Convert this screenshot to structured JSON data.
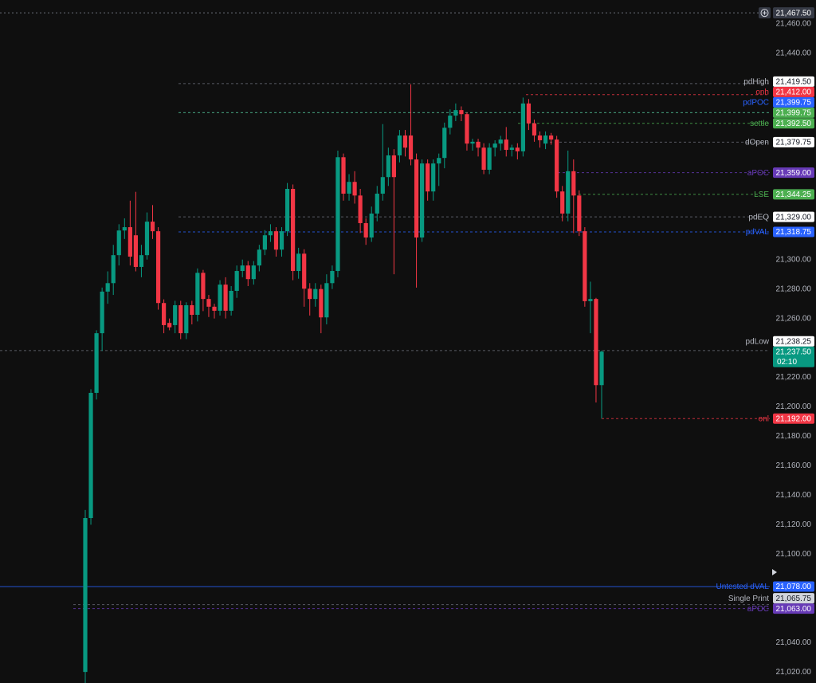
{
  "chart_data": {
    "type": "candlestick",
    "ylim": [
      21012.5,
      21476.25
    ],
    "yticks": [
      {
        "value": 21460,
        "label": "21,460.00"
      },
      {
        "value": 21440,
        "label": "21,440.00"
      },
      {
        "value": 21300,
        "label": "21,300.00"
      },
      {
        "value": 21280,
        "label": "21,280.00"
      },
      {
        "value": 21260,
        "label": "21,260.00"
      },
      {
        "value": 21220,
        "label": "21,220.00"
      },
      {
        "value": 21200,
        "label": "21,200.00"
      },
      {
        "value": 21180,
        "label": "21,180.00"
      },
      {
        "value": 21160,
        "label": "21,160.00"
      },
      {
        "value": 21140,
        "label": "21,140.00"
      },
      {
        "value": 21120,
        "label": "21,120.00"
      },
      {
        "value": 21100,
        "label": "21,100.00"
      },
      {
        "value": 21040,
        "label": "21,040.00"
      },
      {
        "value": 21020,
        "label": "21,020.00"
      }
    ],
    "up_color": "#089981",
    "down_color": "#f23645",
    "open": [
      21020,
      21124.5,
      21209.5,
      21250,
      21278.25,
      21284,
      21303,
      21319.75,
      21322,
      21316.5,
      21295,
      21303,
      21325.75,
      21319.25,
      21270.5,
      21257,
      21255.5,
      21269,
      21250,
      21269,
      21262.5,
      21291,
      21273.25,
      21268,
      21265.25,
      21283,
      21265.25,
      21278.75,
      21292.25,
      21296,
      21286.75,
      21296,
      21306.75,
      21316.5,
      21319.25,
      21306.75,
      21319.25,
      21348,
      21292.25,
      21304,
      21280.25,
      21273.25,
      21280,
      21260.75,
      21284,
      21292.25,
      21369.5,
      21344.75,
      21352.75,
      21343.5,
      21324.75,
      21315,
      21331.25,
      21344.75,
      21356,
      21370.75,
      21370.75,
      21384.25,
      21384.25,
      21368,
      21315,
      21365.25,
      21346.25,
      21365.25,
      21369,
      21389.5,
      21397.75,
      21401.5,
      21398.75,
      21378.75,
      21380,
      21376,
      21361,
      21376,
      21378.75,
      21381.5,
      21374.5,
      21376,
      21373.5,
      21406,
      21392.5,
      21384.25,
      21378.75,
      21384.25,
      21381.5,
      21346.25,
      21331.25,
      21360,
      21343.5,
      21319.25,
      21271.75,
      21273.25,
      21214.75
    ],
    "high": [
      21130,
      21212,
      21252,
      21281,
      21292,
      21310,
      21324,
      21328,
      21340,
      21346,
      21310,
      21332,
      21337,
      21322,
      21273,
      21260,
      21272,
      21272,
      21271,
      21272,
      21294,
      21293,
      21276,
      21270,
      21286,
      21288,
      21282,
      21296,
      21300,
      21299,
      21299,
      21310,
      21320,
      21324,
      21322,
      21322,
      21352,
      21351,
      21308,
      21307,
      21284,
      21284,
      21283,
      21290,
      21296,
      21374,
      21372,
      21358,
      21360,
      21348,
      21328,
      21336,
      21350,
      21392,
      21376,
      21375,
      21388,
      21388,
      21419,
      21372,
      21368,
      21368,
      21368,
      21372,
      21393,
      21402,
      21406,
      21404,
      21400,
      21382,
      21382,
      21379,
      21379,
      21381,
      21384,
      21390,
      21378,
      21379,
      21410,
      21409,
      21395,
      21387,
      21387,
      21386,
      21384,
      21350,
      21374,
      21368,
      21347,
      21322,
      21285,
      21274,
      21238.25
    ],
    "low": [
      21012.5,
      21120,
      21205,
      21238,
      21270,
      21276,
      21296,
      21314,
      21296,
      21292,
      21288,
      21300,
      21314,
      21266,
      21250,
      21252,
      21250,
      21246,
      21246,
      21256,
      21258,
      21265,
      21261,
      21260,
      21262,
      21260,
      21262,
      21274,
      21288,
      21282,
      21283,
      21292,
      21303,
      21312,
      21302,
      21302,
      21316,
      21286,
      21287,
      21268,
      21262,
      21268,
      21250,
      21256,
      21280,
      21288,
      21340,
      21340,
      21338,
      21318,
      21310,
      21312,
      21326,
      21340,
      21350,
      21290,
      21366,
      21370,
      21364,
      21281,
      21312,
      21340,
      21340,
      21350,
      21362,
      21385,
      21394,
      21394,
      21374,
      21374,
      21370,
      21358,
      21358,
      21370,
      21374,
      21370,
      21370,
      21368,
      21370,
      21388,
      21380,
      21376,
      21375,
      21378,
      21342,
      21326,
      21326,
      21318,
      21316,
      21268,
      21250,
      21203,
      21192
    ],
    "close": [
      21124.5,
      21209.5,
      21250,
      21278.25,
      21284,
      21303,
      21319.75,
      21322,
      21302,
      21295,
      21303,
      21325.75,
      21319.25,
      21270.5,
      21255.5,
      21254,
      21269,
      21250,
      21269,
      21262.5,
      21291,
      21273.25,
      21268,
      21265.25,
      21283,
      21265.25,
      21278.75,
      21292.25,
      21296,
      21286.75,
      21296,
      21306.75,
      21316.5,
      21319.25,
      21306.75,
      21319.25,
      21348,
      21292.25,
      21304,
      21280.25,
      21273.25,
      21280,
      21260.75,
      21284,
      21292.25,
      21369.5,
      21344.75,
      21352.75,
      21343.5,
      21324.75,
      21315,
      21331.25,
      21344.75,
      21356,
      21370.75,
      21356,
      21384.25,
      21376,
      21368,
      21315,
      21365.25,
      21346.25,
      21365.25,
      21369,
      21389.5,
      21397.75,
      21401.5,
      21398.75,
      21378.75,
      21380,
      21376,
      21361,
      21376,
      21378.75,
      21381.5,
      21374.5,
      21376,
      21373.5,
      21406,
      21392.5,
      21384.25,
      21381,
      21384.25,
      21381.5,
      21346.25,
      21331.25,
      21360,
      21343.5,
      21319.25,
      21271.75,
      21273.25,
      21214.75,
      21237.5
    ],
    "levels": [
      {
        "label": "pdHigh",
        "value": 21419.5,
        "value_label": "21,419.50",
        "color": "#ffffff"
      },
      {
        "label": "onh",
        "value": 21412,
        "value_label": "21,412.00",
        "color": "#f23645"
      },
      {
        "label": "pdPOC",
        "value": 21399.75,
        "value_label": "21,399.75",
        "color": "#2962ff"
      },
      {
        "label": null,
        "value": 21399.75,
        "value_label": "21,399.75",
        "color": "#4caf50"
      },
      {
        "label": "settle",
        "value": 21392.5,
        "value_label": "21,392.50",
        "color": "#4caf50"
      },
      {
        "label": "dOpen",
        "value": 21379.75,
        "value_label": "21,379.75",
        "color": "#ffffff"
      },
      {
        "label": "aPOC",
        "value": 21359,
        "value_label": "21,359.00",
        "color": "#673ab7"
      },
      {
        "label": "LSE",
        "value": 21344.25,
        "value_label": "21,344.25",
        "color": "#4caf50"
      },
      {
        "label": "pdEQ",
        "value": 21329,
        "value_label": "21,329.00",
        "color": "#ffffff"
      },
      {
        "label": "pdVAL",
        "value": 21318.75,
        "value_label": "21,318.75",
        "color": "#2962ff"
      },
      {
        "label": "pdLow",
        "value": 21238.25,
        "value_label": "21,238.25",
        "color": "#ffffff"
      },
      {
        "label": "onl",
        "value": 21192,
        "value_label": "21,192.00",
        "color": "#f23645"
      },
      {
        "label": "Untested dVAL",
        "value": 21078,
        "value_label": "21,078.00",
        "color": "#2962ff"
      },
      {
        "label": "Single Print",
        "value": 21065.75,
        "value_label": "21,065.75",
        "color": "#d1d4dc"
      },
      {
        "label": "aPOC",
        "value": 21063,
        "value_label": "21,063.00",
        "color": "#673ab7"
      }
    ],
    "last_price": {
      "value": 21237.5,
      "value_label": "21,237.50",
      "countdown": "02:10",
      "color": "#089981"
    },
    "crosshair": {
      "value": 21467.5,
      "value_label": "21,467.50"
    }
  }
}
